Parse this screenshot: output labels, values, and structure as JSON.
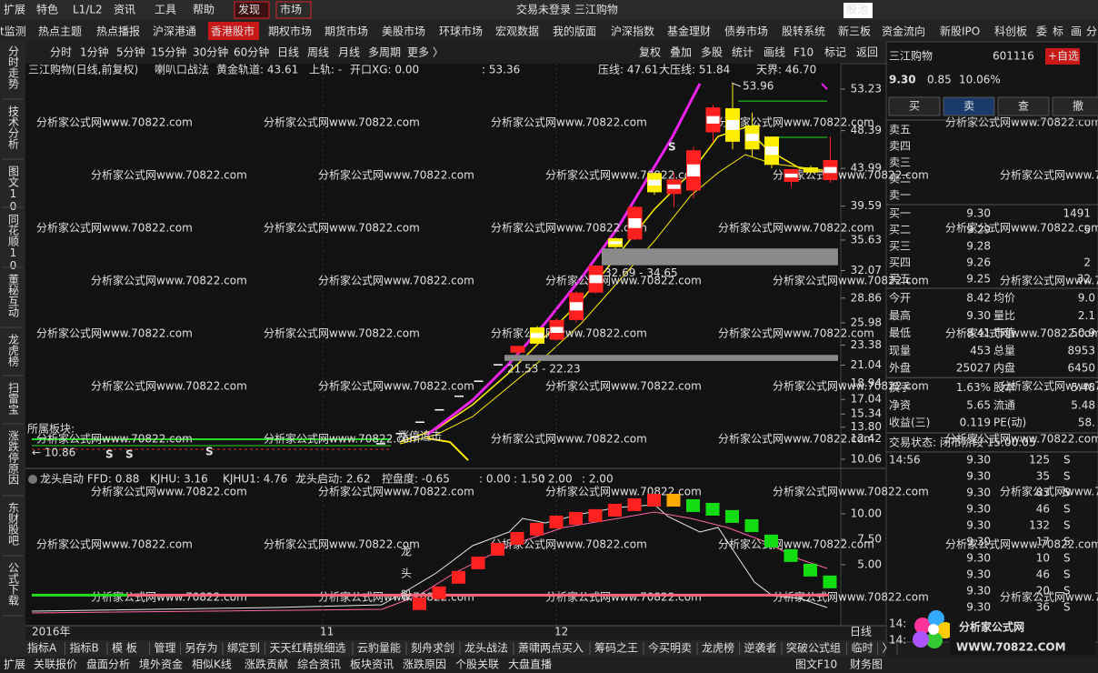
{
  "menu": {
    "items": [
      "扩展",
      "特色",
      "L1/L2",
      "资讯",
      "工具",
      "帮助"
    ],
    "active": [
      "发现",
      "市场"
    ],
    "status": "交易未登录 三江购物",
    "pool": "股池"
  },
  "tabs": [
    "t监测",
    "热点主题",
    "热点播报",
    "沪深港通",
    "香港股市",
    "期权市场",
    "期货市场",
    "美股市场",
    "环球市场",
    "宏观数据",
    "我的版面",
    "沪深指数",
    "基金理财",
    "债券市场",
    "股转系统",
    "新三板",
    "资金流向",
    "新股IPO",
    "科创板",
    "委",
    "标",
    "画",
    "分"
  ],
  "side_tabs": [
    "分时走势",
    "技术分析",
    "图文10",
    "同花顺10",
    "董秘互动",
    "龙虎榜",
    "扫雷宝",
    "涨跌停原因",
    "东财股吧",
    "公式下载"
  ],
  "toolbar": {
    "periods": [
      "分时",
      "1分钟",
      "5分钟",
      "15分钟",
      "30分钟",
      "60分钟",
      "日线",
      "周线",
      "月线",
      "多周期",
      "更多 〉"
    ],
    "actions": [
      "复权",
      "叠加",
      "多股",
      "统计",
      "画线",
      "F10",
      "标记",
      "返回"
    ]
  },
  "watermark": "分析家公式网www.70822.com",
  "main_chart": {
    "type": "candlestick",
    "title": "三江购物(日线,前复权)",
    "strategy": "喇叭口战法",
    "legend": [
      "黄金轨道: 43.61",
      "上轨: -",
      "开口XG: 0.00",
      ": 53.36"
    ],
    "resistance": [
      {
        "label": "压线: 47.61",
        "value": 47.61,
        "color": "#22dd22"
      },
      {
        "label": "大压线: 51.84",
        "value": 51.84,
        "color": "#22dd22"
      }
    ],
    "sky": "天界: 46.70",
    "ylim": [
      9.74,
      57.37
    ],
    "yticks": [
      53.23,
      48.39,
      43.99,
      39.59,
      35.63,
      32.07,
      28.86,
      25.98,
      23.38,
      21.04,
      18.94,
      17.04,
      15.34,
      {
        "value": 13.8,
        "label": "13.80"
      },
      12.42,
      10.06
    ],
    "candles": [
      {
        "open": 11.95,
        "high": 11.95,
        "low": 11.95,
        "close": 11.95,
        "color": "#ffffff"
      },
      {
        "open": 13.14,
        "high": 13.14,
        "low": 13.14,
        "close": 13.14,
        "color": "#ffffff"
      },
      {
        "open": 14.46,
        "high": 14.46,
        "low": 14.46,
        "close": 14.46,
        "color": "#ffffff"
      },
      {
        "open": 15.9,
        "high": 15.9,
        "low": 15.9,
        "close": 15.9,
        "color": "#ffffff"
      },
      {
        "open": 17.49,
        "high": 17.49,
        "low": 17.49,
        "close": 17.49,
        "color": "#ffffff"
      },
      {
        "open": 19.24,
        "high": 19.24,
        "low": 19.24,
        "close": 19.24,
        "color": "#ffffff"
      },
      {
        "open": 21.16,
        "high": 21.16,
        "low": 21.16,
        "close": 21.16,
        "color": "#ffffff"
      },
      {
        "open": 22.5,
        "high": 23.28,
        "low": 22.23,
        "close": 23.28,
        "color": "#ff2020"
      },
      {
        "open": 23.54,
        "high": 25.6,
        "low": 23.5,
        "close": 25.45,
        "color": "#ffee00"
      },
      {
        "open": 24.0,
        "high": 26.5,
        "low": 23.9,
        "close": 26.3,
        "color": "#ff2020"
      },
      {
        "open": 26.3,
        "high": 29.7,
        "low": 26.0,
        "close": 29.5,
        "color": "#ff2020"
      },
      {
        "open": 29.5,
        "high": 32.7,
        "low": 29.4,
        "close": 32.66,
        "color": "#ff2020"
      },
      {
        "open": 34.8,
        "high": 35.93,
        "low": 34.65,
        "close": 35.84,
        "color": "#ffee00"
      },
      {
        "open": 35.7,
        "high": 39.6,
        "low": 35.6,
        "close": 39.5,
        "color": "#ff2020"
      },
      {
        "open": 41.2,
        "high": 43.5,
        "low": 40.9,
        "close": 43.45,
        "color": "#ffee00"
      },
      {
        "open": 41.0,
        "high": 43.5,
        "low": 39.5,
        "close": 42.7,
        "color": "#ff2020"
      },
      {
        "open": 41.4,
        "high": 46.5,
        "low": 40.5,
        "close": 46.1,
        "color": "#ff2020"
      },
      {
        "open": 48.2,
        "high": 51.4,
        "low": 47.0,
        "close": 51.1,
        "color": "#ff2020"
      },
      {
        "open": 51.0,
        "high": 53.96,
        "low": 46.2,
        "close": 47.1,
        "color": "#ffee00"
      },
      {
        "open": 49.0,
        "high": 50.5,
        "low": 45.4,
        "close": 46.2,
        "color": "#ffee00"
      },
      {
        "open": 47.7,
        "high": 47.7,
        "low": 44.0,
        "close": 44.4,
        "color": "#ffee00"
      },
      {
        "open": 42.41,
        "high": 43.9,
        "low": 41.8,
        "close": 43.9,
        "color": "#ff2020"
      },
      {
        "open": 44.1,
        "high": 44.3,
        "low": 43.4,
        "close": 43.5,
        "color": "#ffee00"
      },
      {
        "open": 42.63,
        "high": 47.7,
        "low": 42.3,
        "close": 44.96,
        "color": "#ff2020"
      }
    ],
    "high_label": "53.96",
    "gaps": [
      {
        "low": 32.69,
        "high": 34.65,
        "label": "32.69 - 34.65"
      },
      {
        "low": 21.53,
        "high": 22.23,
        "label": "21.53 - 22.23"
      }
    ],
    "sector": "所属板块:",
    "start": "← 10.86",
    "signals": [
      "S",
      "S",
      "S",
      "S"
    ],
    "chase": "涨停追击",
    "dates": [
      "2016年",
      "11",
      "12"
    ],
    "period": "日线"
  },
  "indicator": {
    "type": "bar",
    "title": "龙头启动 FFD: 0.88",
    "legend": [
      "KJHU: 3.16",
      "KJHU1: 4.76",
      "龙头启动: 2.62",
      "控盘度: -0.65",
      ": 0.00",
      ": 1.50",
      ": 2.00"
    ],
    "level": {
      "label": ": 2.00",
      "value": 2
    },
    "ylim": [
      -1.0,
      13.3
    ],
    "yticks": [
      {
        "value": 10,
        "label": "10.00"
      },
      {
        "value": 7.5,
        "label": "7.50"
      },
      {
        "value": 5,
        "label": "5.00"
      }
    ],
    "tag": "龙头股",
    "bars": [
      {
        "value": 1.79,
        "color": "#ff2020"
      },
      {
        "value": 2.86,
        "color": "#ff2020"
      },
      {
        "value": 4.38,
        "color": "#ff2020"
      },
      {
        "value": 5.8,
        "color": "#ff2020"
      },
      {
        "value": 7.14,
        "color": "#ff2020"
      },
      {
        "value": 8.21,
        "color": "#ff2020"
      },
      {
        "value": 9.11,
        "color": "#ff2020"
      },
      {
        "value": 9.82,
        "color": "#ff2020"
      },
      {
        "value": 10.18,
        "color": "#ff2020"
      },
      {
        "value": 10.45,
        "color": "#ff2020"
      },
      {
        "value": 10.98,
        "color": "#ff2020"
      },
      {
        "value": 11.52,
        "color": "#ff2020"
      },
      {
        "value": 11.96,
        "color": "#ff2020"
      },
      {
        "value": 11.96,
        "color": "#ffaa00"
      },
      {
        "value": 11.43,
        "color": "#11dd11"
      },
      {
        "value": 11.07,
        "color": "#11dd11"
      },
      {
        "value": 10.36,
        "color": "#11dd11"
      },
      {
        "value": 9.46,
        "color": "#11dd11"
      },
      {
        "value": 7.95,
        "color": "#11dd11"
      },
      {
        "value": 6.52,
        "color": "#11dd11"
      },
      {
        "value": 5.09,
        "color": "#11dd11"
      },
      {
        "value": 3.93,
        "color": "#11dd11"
      }
    ]
  },
  "bottom_tabs": [
    "指标A",
    "指标B",
    "模 板",
    "管理",
    "另存为",
    "绑定到",
    "天天红精挑细选",
    "云豹量能",
    "刻舟求剑",
    "龙头战法",
    "萧啸两点买入",
    "筹码之王",
    "今买明卖",
    "龙虎榜",
    "逆袭者",
    "突破公式组",
    "临时",
    "〉"
  ],
  "bottom_links": [
    "扩展",
    "关联报价",
    "盘面分析",
    "境外资金",
    "相似K线",
    "涨跌贡献",
    "综合资讯",
    "板块资讯",
    "涨跌原因",
    "个股关联",
    "大盘直播",
    "图文F10",
    "财务图"
  ],
  "quote": {
    "name": "三江购物",
    "code": "601116",
    "add": "+自选",
    "price": "9.30",
    "change": "0.85",
    "pct": "10.06%",
    "buttons": [
      "买",
      "卖",
      "查",
      "撤"
    ],
    "asks": [
      "卖五",
      "卖四",
      "卖三",
      "卖二",
      "卖一"
    ],
    "bids": [
      [
        "买一",
        "9.30",
        "1491"
      ],
      [
        "买二",
        "9.29",
        "5"
      ],
      [
        "买三",
        "9.28",
        ""
      ],
      [
        "买四",
        "9.26",
        "2"
      ],
      [
        "买五",
        "9.25",
        "32"
      ]
    ],
    "stats": [
      [
        "今开",
        "8.42",
        "均价",
        "9.0"
      ],
      [
        "最高",
        "9.30",
        "量比",
        "2.1"
      ],
      [
        "最低",
        "8.41",
        "市值",
        "50.9"
      ],
      [
        "现量",
        "453",
        "总量",
        "8953"
      ],
      [
        "外盘",
        "25027",
        "内盘",
        "6450"
      ],
      [
        "换手",
        "1.63%",
        "股本",
        "5.48"
      ],
      [
        "净资",
        "5.65",
        "流通",
        "5.48"
      ],
      [
        "收益(三)",
        "0.119",
        "PE(动)",
        "58."
      ]
    ],
    "state": "交易状态: 闭市阶段 15:00:05",
    "time": "14:56",
    "trades": [
      [
        "9.30",
        "125",
        "S"
      ],
      [
        "9.30",
        "35",
        "S"
      ],
      [
        "9.30",
        "83",
        "S"
      ],
      [
        "9.30",
        "46",
        "S"
      ],
      [
        "9.30",
        "132",
        "S"
      ],
      [
        "9.30",
        "17",
        "S"
      ],
      [
        "9.30",
        "10",
        "S"
      ],
      [
        "9.30",
        "46",
        "S"
      ],
      [
        "9.30",
        "20",
        "S"
      ],
      [
        "9.30",
        "36",
        "S"
      ]
    ],
    "more_times": [
      "14:",
      "14:"
    ]
  },
  "logo": {
    "title": "分析家公式网",
    "url": "WWW.70822.COM"
  }
}
